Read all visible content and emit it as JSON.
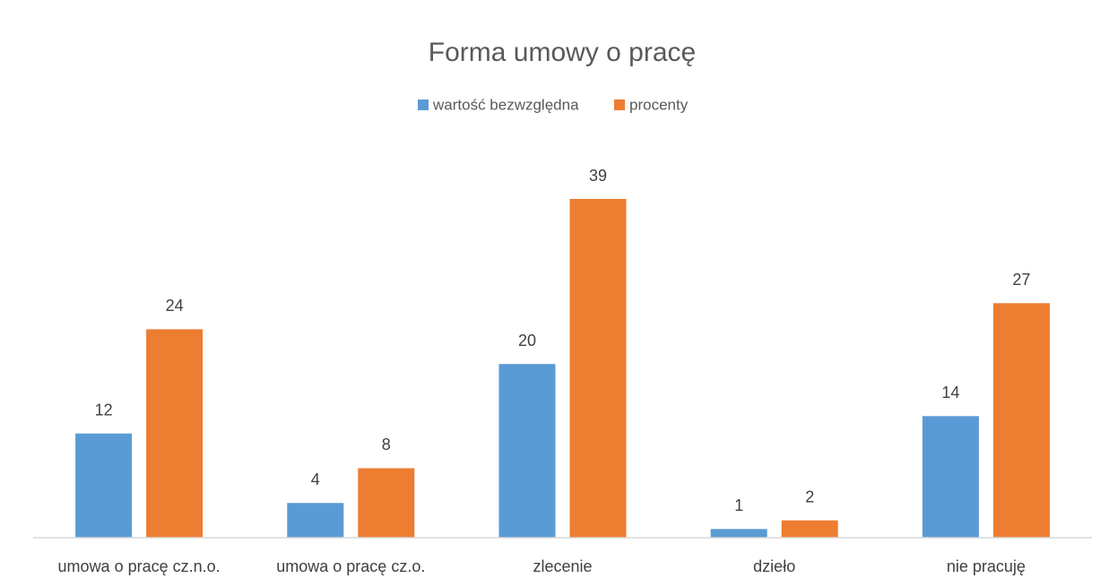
{
  "chart_data": {
    "type": "bar",
    "title": "Forma umowy o pracę",
    "categories": [
      "umowa o pracę cz.n.o.",
      "umowa o pracę cz.o.",
      "zlecenie",
      "dzieło",
      "nie pracuję"
    ],
    "series": [
      {
        "name": "wartość bezwzględna",
        "color": "#5b9bd5",
        "values": [
          12,
          4,
          20,
          1,
          14
        ]
      },
      {
        "name": "procenty",
        "color": "#ed7d31",
        "values": [
          24,
          8,
          39,
          2,
          27
        ]
      }
    ],
    "legend": "top"
  }
}
